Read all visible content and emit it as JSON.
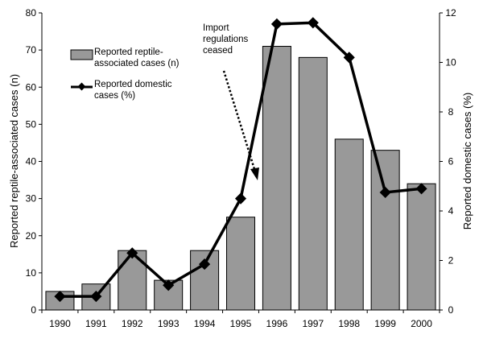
{
  "chart_data": {
    "type": "bar",
    "categories": [
      "1990",
      "1991",
      "1992",
      "1993",
      "1994",
      "1995",
      "1996",
      "1997",
      "1998",
      "1999",
      "2000"
    ],
    "series": [
      {
        "name": "Reported reptile-associated cases (n)",
        "type": "bar",
        "axis": "left",
        "values": [
          5,
          7,
          16,
          8,
          16,
          25,
          71,
          68,
          46,
          43,
          34
        ]
      },
      {
        "name": "Reported domestic cases (%)",
        "type": "line",
        "axis": "right",
        "values": [
          0.55,
          0.55,
          2.3,
          1.0,
          1.85,
          4.5,
          11.55,
          11.6,
          10.2,
          4.75,
          4.9
        ]
      }
    ],
    "title": "",
    "xlabel": "",
    "ylabel": "Reported reptile-associated cases (n)",
    "y2label": "Reported domestic cases (%)",
    "ylim": [
      0,
      80
    ],
    "y2lim": [
      0,
      12
    ],
    "yticks": [
      0,
      10,
      20,
      30,
      40,
      50,
      60,
      70,
      80
    ],
    "y2ticks": [
      0,
      2,
      4,
      6,
      8,
      10,
      12
    ],
    "grid": false,
    "legend": {
      "placement": "top-left",
      "bar_label_lines": [
        "Reported reptile-",
        "associated cases (n)"
      ],
      "line_label_lines": [
        "Reported domestic",
        "cases (%)"
      ]
    },
    "annotation": {
      "text_lines": [
        "Import",
        "regulations",
        "ceased"
      ],
      "arrow": "dotted",
      "points_to_category": "1995"
    },
    "colors": {
      "bar_fill": "#999999",
      "bar_stroke": "#000000",
      "line": "#000000",
      "marker": "#000000"
    }
  }
}
